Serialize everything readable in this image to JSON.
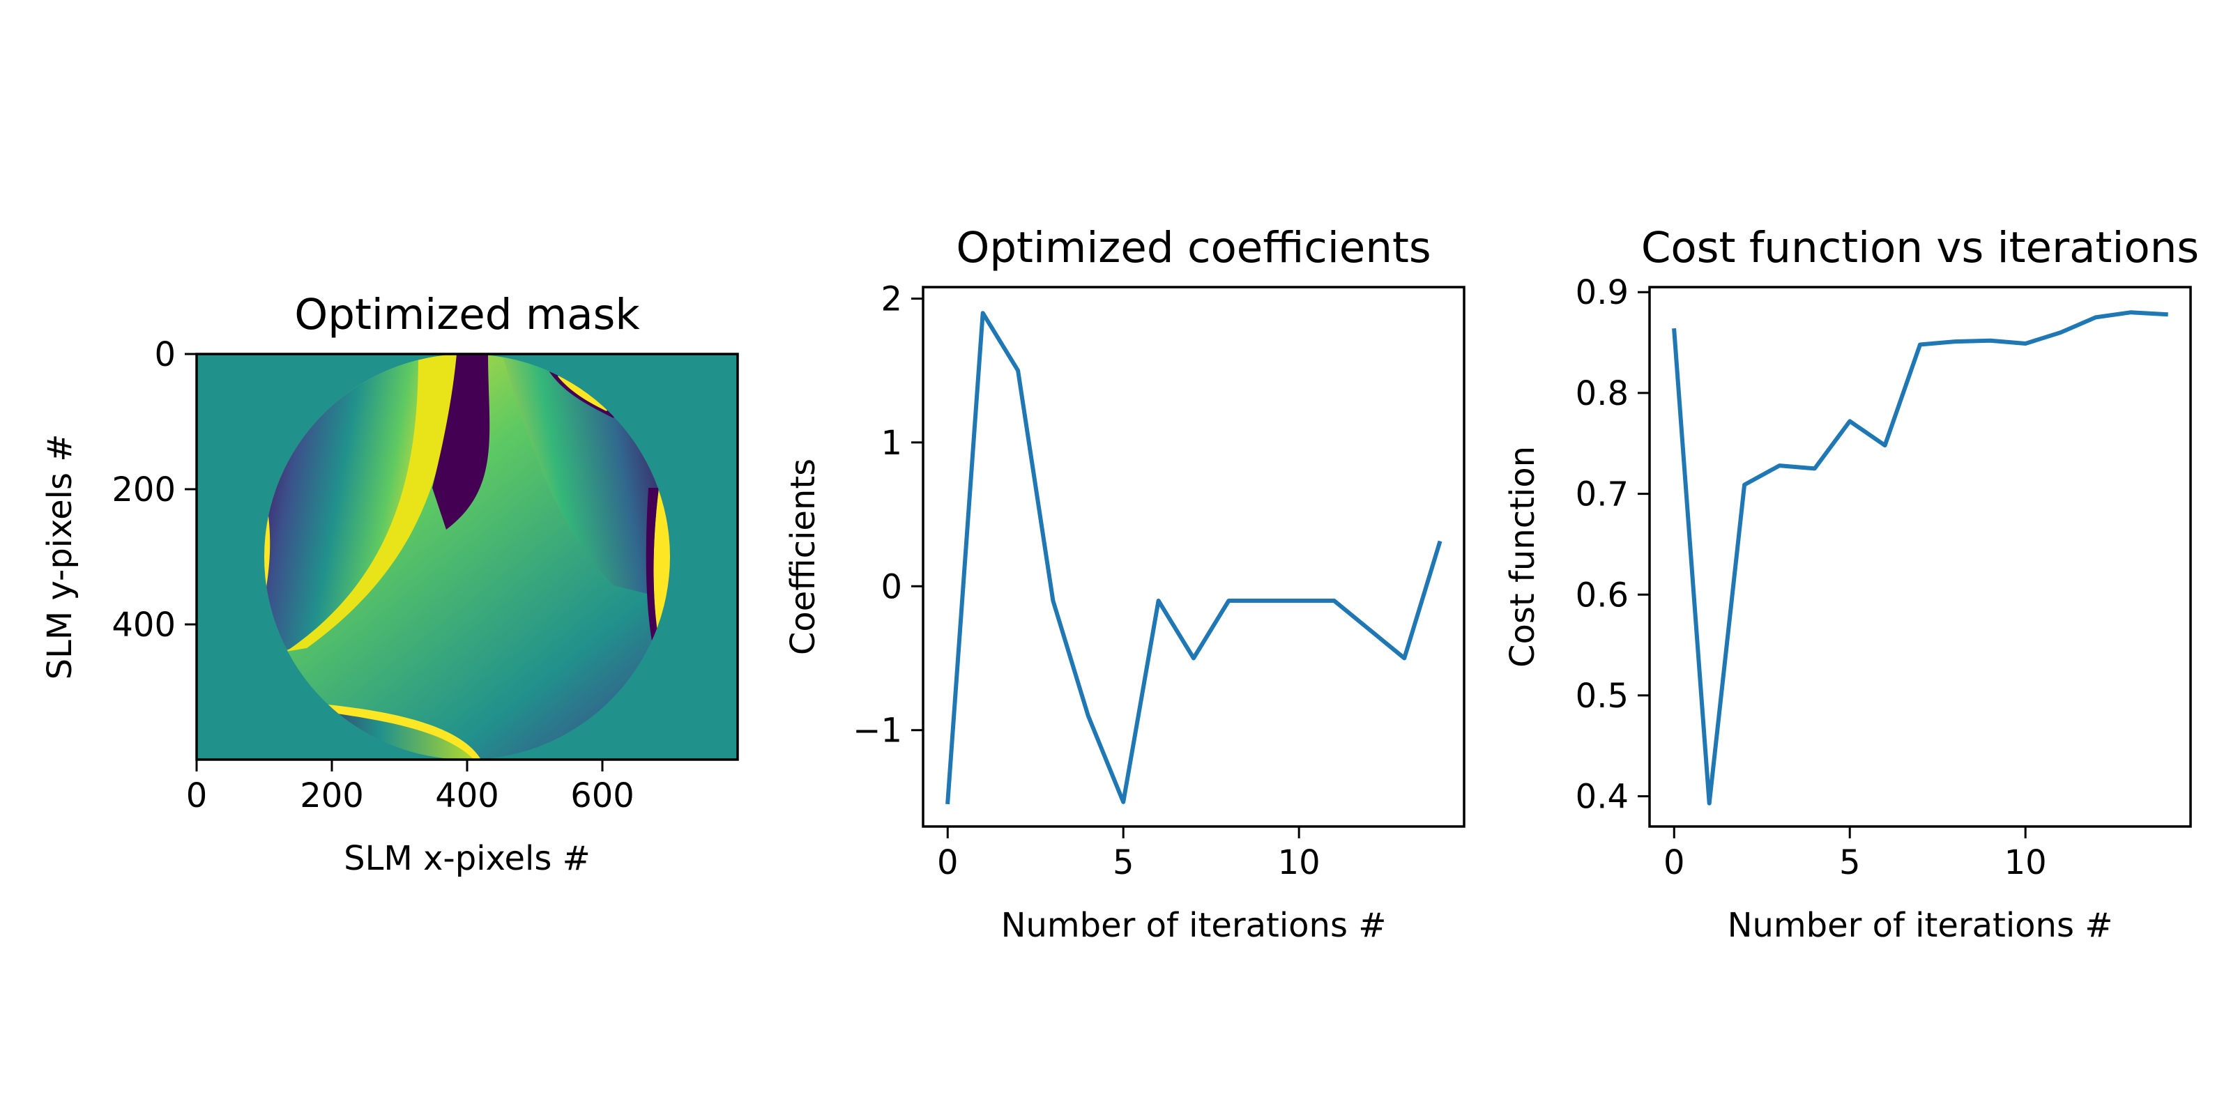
{
  "chart_data": [
    {
      "type": "heatmap",
      "title": "Optimized mask",
      "xlabel": "SLM x-pixels #",
      "ylabel": "SLM y-pixels #",
      "xlim": [
        0,
        800
      ],
      "ylim": [
        600,
        0
      ],
      "xticks": [
        "0",
        "200",
        "400",
        "600"
      ],
      "yticks": [
        "0",
        "200",
        "400"
      ],
      "colormap": "viridis",
      "background_color": "#21918c",
      "grid": false
    },
    {
      "type": "line",
      "title": "Optimized coefficients",
      "xlabel": "Number of iterations #",
      "ylabel": "Coefficients",
      "xlim": [
        -0.7,
        14.7
      ],
      "ylim": [
        -1.67,
        2.08
      ],
      "xticks": [
        "0",
        "5",
        "10"
      ],
      "yticks": [
        "−1",
        "0",
        "1",
        "2"
      ],
      "grid": false,
      "series": [
        {
          "color": "#1f77b4",
          "x": [
            0,
            1,
            2,
            3,
            4,
            5,
            6,
            7,
            8,
            9,
            10,
            11,
            12,
            13,
            14
          ],
          "y": [
            -1.5,
            1.9,
            1.5,
            -0.1,
            -0.9,
            -1.5,
            -0.1,
            -0.5,
            -0.1,
            -0.1,
            -0.1,
            -0.1,
            -0.3,
            -0.5,
            0.3
          ]
        }
      ]
    },
    {
      "type": "line",
      "title": "Cost function vs iterations",
      "xlabel": "Number of iterations #",
      "ylabel": "Cost function",
      "xlim": [
        -0.7,
        14.7
      ],
      "ylim": [
        0.37,
        0.905
      ],
      "xticks": [
        "0",
        "5",
        "10"
      ],
      "yticks": [
        "0.4",
        "0.5",
        "0.6",
        "0.7",
        "0.8",
        "0.9"
      ],
      "grid": false,
      "series": [
        {
          "color": "#1f77b4",
          "x": [
            0,
            1,
            2,
            3,
            4,
            5,
            6,
            7,
            8,
            9,
            10,
            11,
            12,
            13,
            14
          ],
          "y": [
            0.862,
            0.393,
            0.709,
            0.728,
            0.725,
            0.772,
            0.748,
            0.848,
            0.851,
            0.852,
            0.849,
            0.86,
            0.875,
            0.88,
            0.878
          ]
        }
      ]
    }
  ]
}
